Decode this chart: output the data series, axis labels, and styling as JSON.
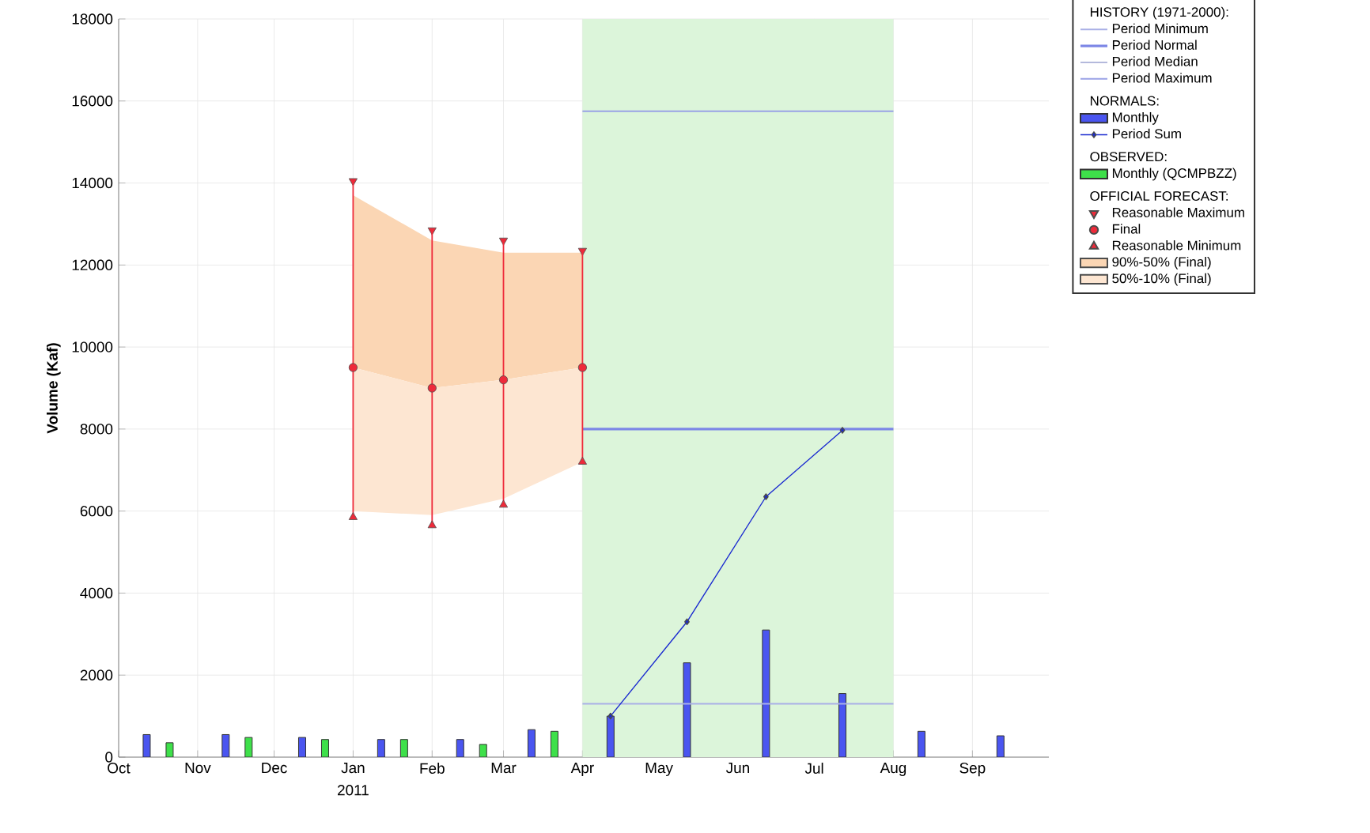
{
  "chart_data": {
    "type": "bar",
    "ylabel": "Volume (Kaf)",
    "xlim": [
      "2010-10-01",
      "2011-10-01"
    ],
    "xticks": [
      {
        "value": "2010-10-01",
        "label": "Oct"
      },
      {
        "value": "2010-11-01",
        "label": "Nov"
      },
      {
        "value": "2010-12-01",
        "label": "Dec"
      },
      {
        "value": "2011-01-01",
        "label": "Jan"
      },
      {
        "value": "2011-02-01",
        "label": "Feb"
      },
      {
        "value": "2011-03-01",
        "label": "Mar"
      },
      {
        "value": "2011-04-01",
        "label": "Apr"
      },
      {
        "value": "2011-05-01",
        "label": "May"
      },
      {
        "value": "2011-06-01",
        "label": "Jun"
      },
      {
        "value": "2011-07-01",
        "label": "Jul"
      },
      {
        "value": "2011-08-01",
        "label": "Aug"
      },
      {
        "value": "2011-09-01",
        "label": "Sep"
      }
    ],
    "ylim": [
      0,
      18000
    ],
    "yticks": [
      0,
      2000,
      4000,
      6000,
      8000,
      10000,
      12000,
      14000,
      16000,
      18000
    ],
    "grid": true,
    "legend": "right",
    "annotations": [
      "HISTORY (1971-2000):",
      "NORMALS:",
      "OBSERVED:",
      "OFFICIAL FORECAST:",
      "2011"
    ],
    "bands": [
      {
        "axis": "x",
        "from": "2011-04-01",
        "to": "2011-08-01",
        "color": "#dcf5da"
      }
    ],
    "series": [
      {
        "name": "Period Minimum",
        "type": "line",
        "color": "#a9b0e6",
        "marker": "none",
        "x": [
          "2011-04-01",
          "2011-08-01"
        ],
        "values": [
          1300,
          1300
        ]
      },
      {
        "name": "Period Normal",
        "type": "line",
        "color": "#7d87e6",
        "marker": "none",
        "x": [
          "2011-04-01",
          "2011-08-01"
        ],
        "values": [
          8000,
          8000
        ]
      },
      {
        "name": "Period Median",
        "type": "line",
        "color": "#b4b9dc",
        "marker": "none",
        "values": [
          null,
          null
        ]
      },
      {
        "name": "Period Maximum",
        "type": "line",
        "color": "#9aa2e6",
        "marker": "none",
        "x": [
          "2011-04-01",
          "2011-08-01"
        ],
        "values": [
          15750,
          15750
        ]
      },
      {
        "name": "Monthly",
        "color": "#4a55f0",
        "x": [
          "2010-10-12",
          "2010-11-12",
          "2010-12-12",
          "2011-01-12",
          "2011-02-12",
          "2011-03-12",
          "2011-04-12",
          "2011-05-12",
          "2011-06-12",
          "2011-07-12",
          "2011-08-12",
          "2011-09-12"
        ],
        "values": [
          550,
          550,
          480,
          430,
          430,
          670,
          1000,
          2300,
          3100,
          1550,
          630,
          520
        ]
      },
      {
        "name": "Period Sum",
        "type": "line",
        "color": "#1a2ad0",
        "marker": "diamond",
        "x": [
          "2011-04-12",
          "2011-05-12",
          "2011-06-12",
          "2011-07-12"
        ],
        "values": [
          1000,
          3300,
          6350,
          7970
        ]
      },
      {
        "name": "Monthly (QCMPBZZ)",
        "color": "#3ee04a",
        "x": [
          "2010-10-21",
          "2010-11-21",
          "2010-12-21",
          "2011-01-21",
          "2011-02-21",
          "2011-03-21"
        ],
        "values": [
          350,
          480,
          430,
          430,
          310,
          630
        ]
      },
      {
        "name": "Reasonable Maximum",
        "type": "scatter",
        "color": "#ee2a3a",
        "marker": "triangle-down",
        "x": [
          "2011-01-01",
          "2011-02-01",
          "2011-03-01",
          "2011-04-01"
        ],
        "values": [
          14050,
          12850,
          12600,
          12350
        ]
      },
      {
        "name": "Final",
        "type": "scatter",
        "color": "#ee2a3a",
        "marker": "circle",
        "x": [
          "2011-01-01",
          "2011-02-01",
          "2011-03-01",
          "2011-04-01"
        ],
        "values": [
          9500,
          9000,
          9200,
          9500
        ],
        "errors": [
          [
            5850,
            14050
          ],
          [
            5650,
            12850
          ],
          [
            6150,
            12600
          ],
          [
            7200,
            12350
          ]
        ]
      },
      {
        "name": "Reasonable Minimum",
        "type": "scatter",
        "color": "#ee2a3a",
        "marker": "triangle",
        "x": [
          "2011-01-01",
          "2011-02-01",
          "2011-03-01",
          "2011-04-01"
        ],
        "values": [
          5850,
          5650,
          6150,
          7200
        ]
      },
      {
        "name": "90%-50% (Final)",
        "type": "area",
        "color": "#fbd6b4",
        "x": [
          "2011-01-01",
          "2011-02-01",
          "2011-03-01",
          "2011-04-01"
        ],
        "values": [
          null,
          null,
          null,
          null
        ],
        "lower": [
          9500,
          9000,
          9200,
          9500
        ],
        "upper": [
          13700,
          12600,
          12300,
          12300
        ]
      },
      {
        "name": "50%-10% (Final)",
        "type": "area",
        "color": "#fde6d2",
        "x": [
          "2011-01-01",
          "2011-02-01",
          "2011-03-01",
          "2011-04-01"
        ],
        "values": [
          null,
          null,
          null,
          null
        ],
        "lower": [
          6000,
          5900,
          6300,
          7200
        ],
        "upper": [
          9500,
          9000,
          9200,
          9500
        ]
      }
    ]
  }
}
